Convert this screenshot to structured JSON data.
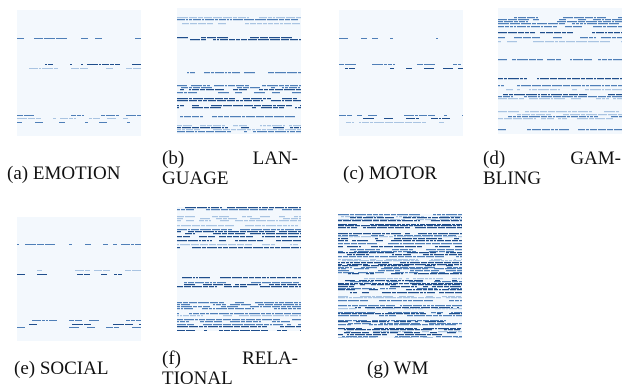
{
  "panels": [
    {
      "id": "a",
      "caption": "(a) EMOTION",
      "density": "sparse"
    },
    {
      "id": "b",
      "caption_line1_left": "(b)",
      "caption_line1_right": "LAN-",
      "caption_line2": "GUAGE",
      "density": "dense"
    },
    {
      "id": "c",
      "caption": "(c) MOTOR",
      "density": "sparse"
    },
    {
      "id": "d",
      "caption_line1_left": "(d)",
      "caption_line1_right": "GAM-",
      "caption_line2": "BLING",
      "density": "dense"
    },
    {
      "id": "e",
      "caption": "(e) SOCIAL",
      "density": "sparse"
    },
    {
      "id": "f",
      "caption_line1_left": "(f)",
      "caption_line1_right": "RELA-",
      "caption_line2": "TIONAL",
      "density": "dense"
    },
    {
      "id": "g",
      "caption": "(g) WM",
      "density": "very-dense"
    }
  ],
  "colors": {
    "background": "#f3f8fd",
    "stripe_dark": "#1f4e8c",
    "stripe_mid": "#4f7fb8",
    "stripe_light": "#a9c4e2"
  }
}
